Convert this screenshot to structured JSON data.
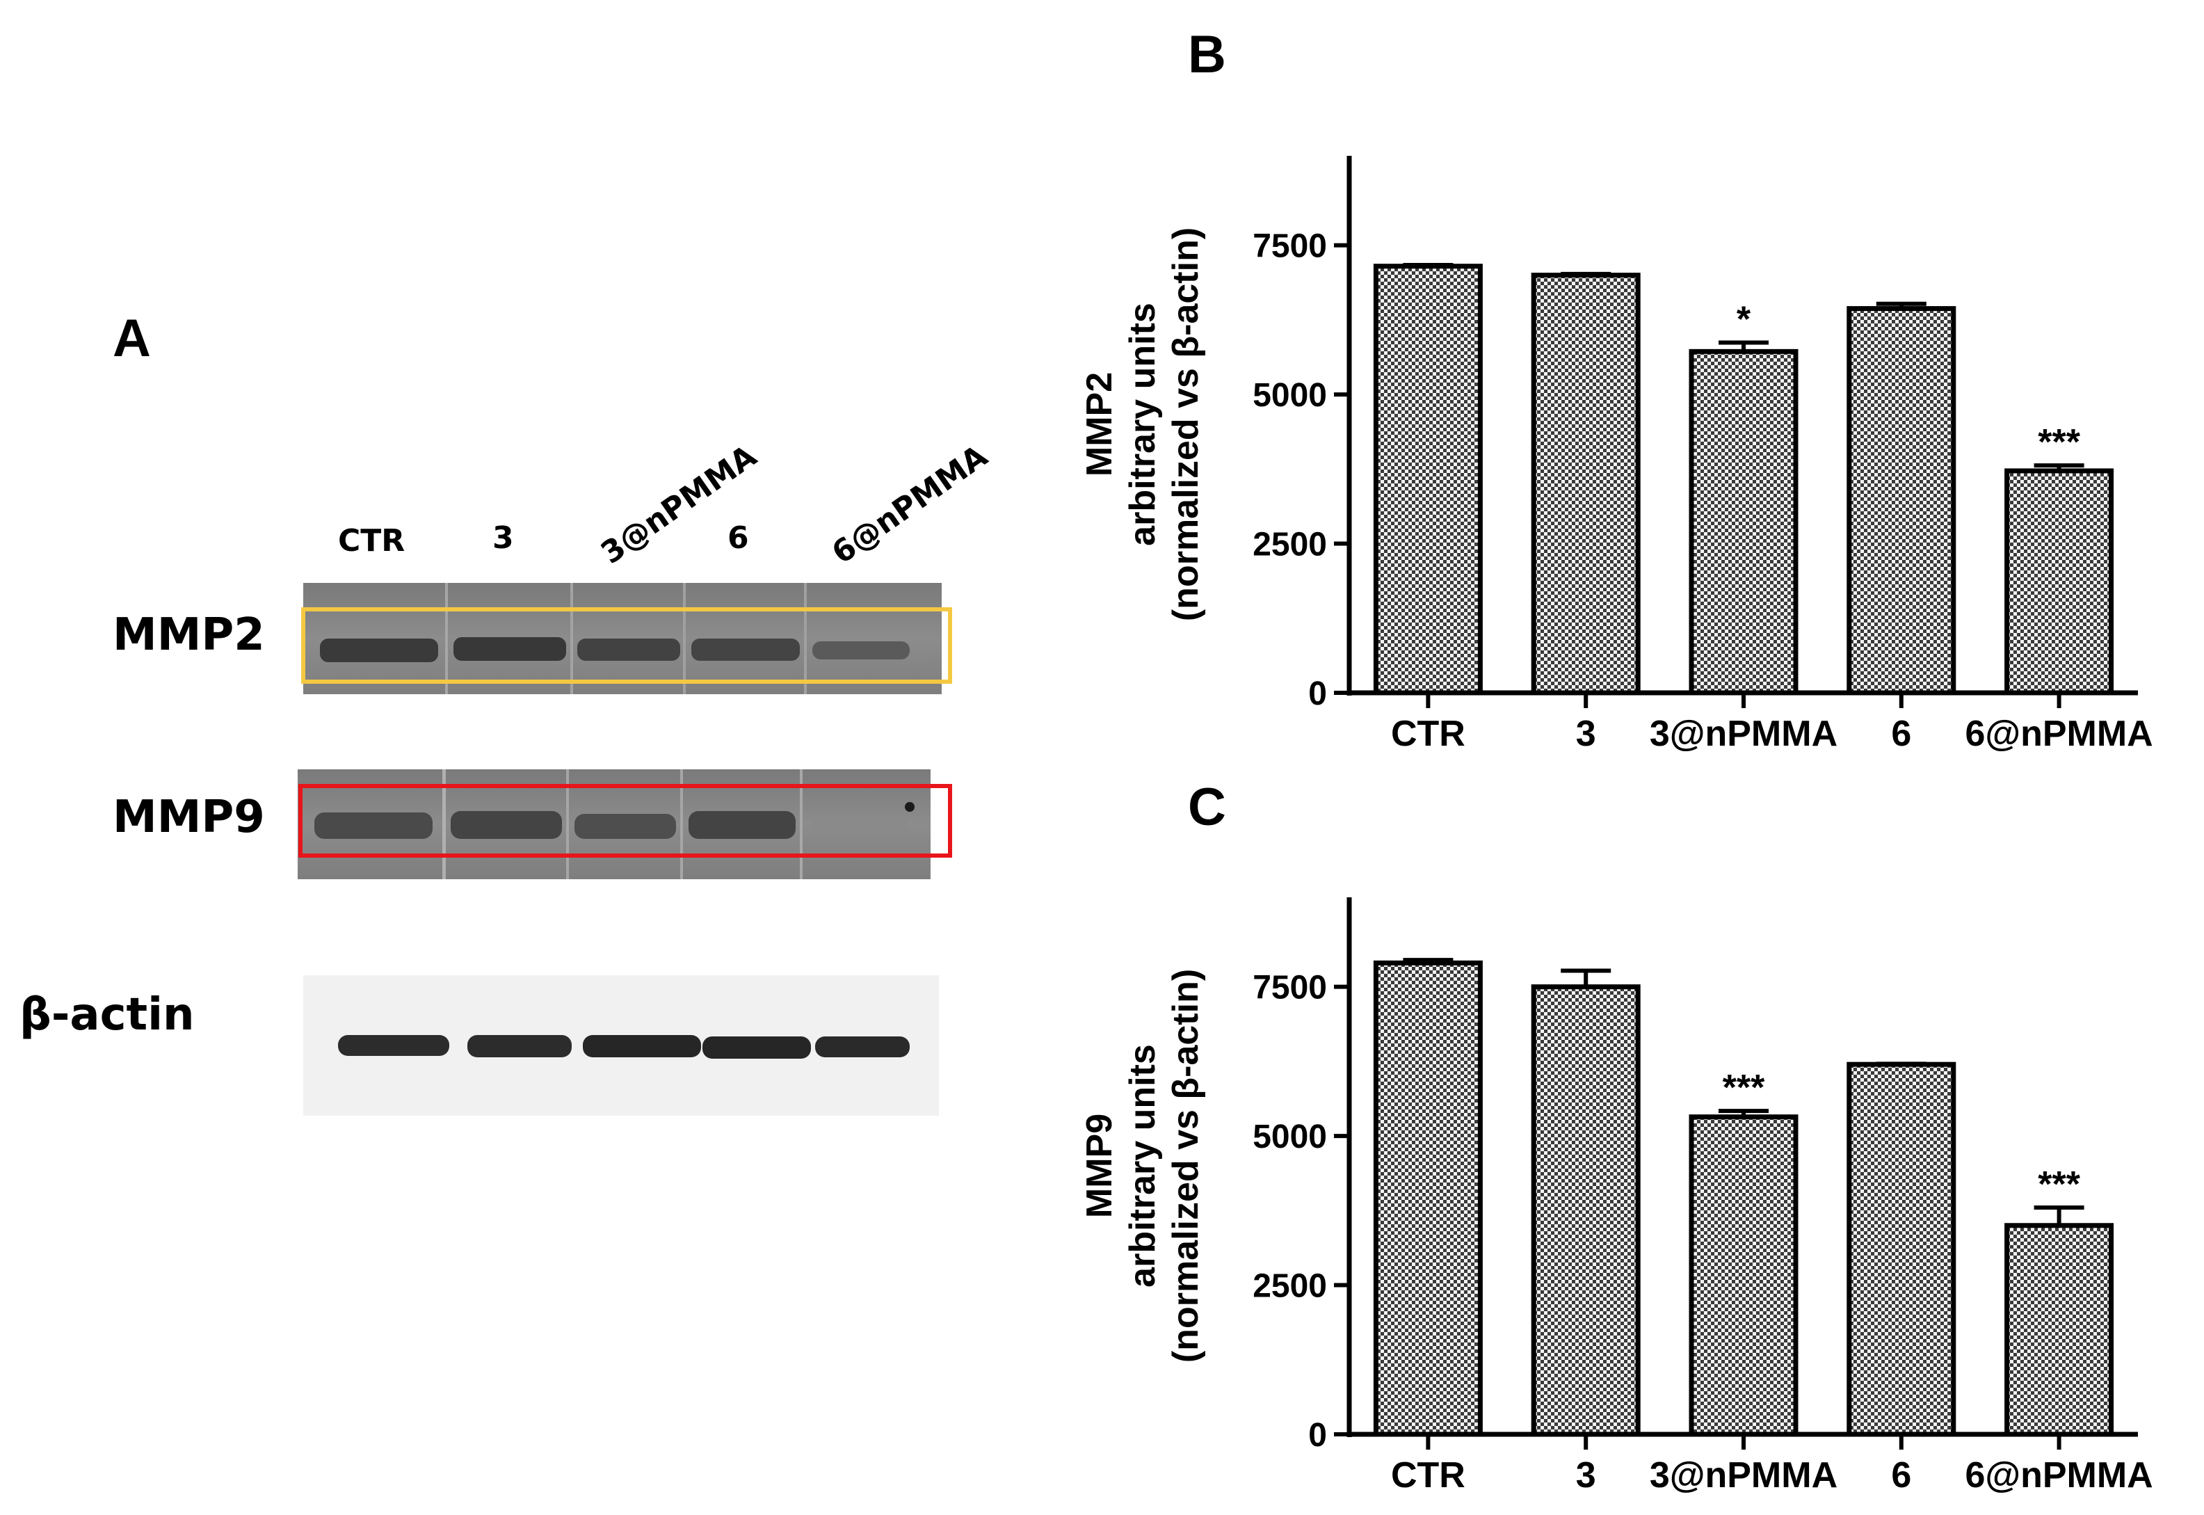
{
  "panel_a": {
    "letter": "A",
    "lanes": [
      "CTR",
      "3",
      "3@nPMMA",
      "6",
      "6@nPMMA"
    ],
    "rows": [
      "MMP2",
      "MMP9",
      "β-actin"
    ],
    "colors": {
      "mmp2_box": "#f5c842",
      "mmp9_box": "#e8151b"
    }
  },
  "chart_data": [
    {
      "letter": "B",
      "type": "bar",
      "categories": [
        "CTR",
        "3",
        "3@nPMMA",
        "6",
        "6@nPMMA"
      ],
      "values": [
        7150,
        7000,
        5720,
        6440,
        3720
      ],
      "errors": [
        20,
        20,
        150,
        80,
        90
      ],
      "significance": [
        "",
        "",
        "*",
        "",
        "***"
      ],
      "ylabel_line1": "MMP2",
      "ylabel_line2": "arbitrary units",
      "ylabel_line3": "(normalized vs β-actin)",
      "ylim": [
        0,
        9000
      ],
      "yticks": [
        0,
        2500,
        5000,
        7500
      ],
      "grid": false,
      "bar_pattern": "checkered"
    },
    {
      "letter": "C",
      "type": "bar",
      "categories": [
        "CTR",
        "3",
        "3@nPMMA",
        "6",
        "6@nPMMA"
      ],
      "values": [
        7900,
        7500,
        5320,
        6200,
        3500
      ],
      "errors": [
        50,
        270,
        100,
        10,
        300
      ],
      "significance": [
        "",
        "",
        "***",
        "",
        "***"
      ],
      "ylabel_line1": "MMP9",
      "ylabel_line2": "arbitrary units",
      "ylabel_line3": "(normalized vs β-actin)",
      "ylim": [
        0,
        9000
      ],
      "yticks": [
        0,
        2500,
        5000,
        7500
      ],
      "grid": false,
      "bar_pattern": "checkered"
    }
  ]
}
